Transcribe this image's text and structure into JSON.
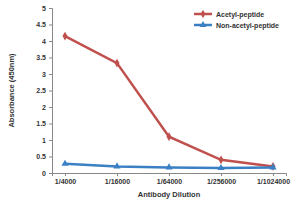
{
  "chart_data": {
    "type": "line",
    "x_label": "Antibody Dilution",
    "y_label": "Absorbance (450nm)",
    "categories": [
      "1/4000",
      "1/16000",
      "1/64000",
      "1/256000",
      "1/1024000"
    ],
    "series": [
      {
        "name": "Acetyl-peptide",
        "color": "#c0504d",
        "marker": "diamond",
        "values": [
          4.15,
          3.33,
          1.1,
          0.4,
          0.2
        ]
      },
      {
        "name": "Non-acetyl-peptide",
        "color": "#3b7fc4",
        "marker": "triangle",
        "values": [
          0.28,
          0.2,
          0.17,
          0.15,
          0.17
        ]
      }
    ],
    "ylim": [
      0,
      5
    ],
    "yticks": [
      0,
      0.5,
      1,
      1.5,
      2,
      2.5,
      3,
      3.5,
      4,
      4.5,
      5
    ],
    "grid": false,
    "legend": "top-right"
  }
}
